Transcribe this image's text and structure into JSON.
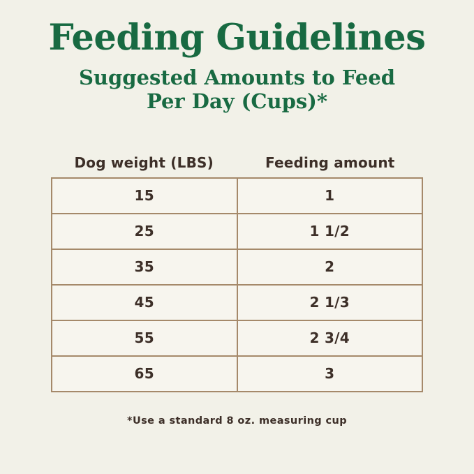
{
  "header": {
    "title": "Feeding Guidelines",
    "subtitle_line1": "Suggested Amounts to Feed",
    "subtitle_line2": "Per Day (Cups)*"
  },
  "table": {
    "columns": [
      "Dog weight (LBS)",
      "Feeding amount"
    ],
    "rows": [
      [
        "15",
        "1"
      ],
      [
        "25",
        "1 1/2"
      ],
      [
        "35",
        "2"
      ],
      [
        "45",
        "2 1/3"
      ],
      [
        "55",
        "2 3/4"
      ],
      [
        "65",
        "3"
      ]
    ]
  },
  "footnote": "*Use a standard 8 oz. measuring cup",
  "colors": {
    "background": "#f2f1e8",
    "cell_background": "#f7f5ee",
    "heading_green": "#186a42",
    "table_border": "#a5896a",
    "text_brown": "#3d2f28"
  },
  "chart_data": {
    "type": "table",
    "title": "Feeding Guidelines",
    "subtitle": "Suggested Amounts to Feed Per Day (Cups)*",
    "columns": [
      "Dog weight (LBS)",
      "Feeding amount"
    ],
    "rows": [
      [
        "15",
        "1"
      ],
      [
        "25",
        "1 1/2"
      ],
      [
        "35",
        "2"
      ],
      [
        "45",
        "2 1/3"
      ],
      [
        "55",
        "2 3/4"
      ],
      [
        "65",
        "3"
      ]
    ],
    "dog_weights_lbs": [
      15,
      25,
      35,
      45,
      55,
      65
    ],
    "feeding_amounts_cups": [
      1,
      1.5,
      2,
      2.33,
      2.75,
      3
    ],
    "footnote": "*Use a standard 8 oz. measuring cup",
    "legend_position": "none",
    "grid": "table-borders"
  }
}
